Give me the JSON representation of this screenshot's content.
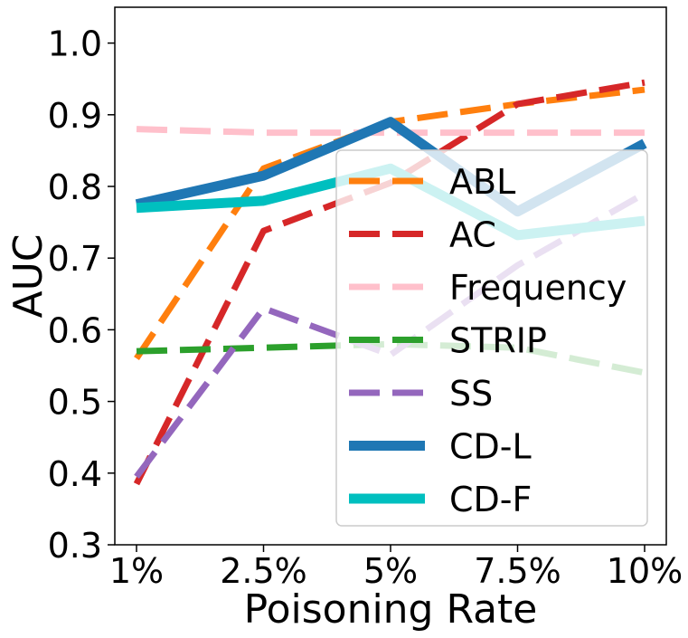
{
  "chart_data": {
    "type": "line",
    "title": "",
    "xlabel": "Poisoning Rate",
    "ylabel": "AUC",
    "categories": [
      "1%",
      "2.5%",
      "5%",
      "7.5%",
      "10%"
    ],
    "ylim": [
      0.3,
      1.05
    ],
    "yticks": [
      "0.3",
      "0.4",
      "0.5",
      "0.6",
      "0.7",
      "0.8",
      "0.9",
      "1.0"
    ],
    "grid": false,
    "legend_position": "lower-right",
    "series": [
      {
        "name": "ABL",
        "values": [
          0.56,
          0.825,
          0.89,
          0.915,
          0.935
        ],
        "color": "#ff7f0e",
        "style": "dashed"
      },
      {
        "name": "AC",
        "values": [
          0.385,
          0.738,
          0.805,
          0.915,
          0.945
        ],
        "color": "#d62728",
        "style": "dashed"
      },
      {
        "name": "Frequency",
        "values": [
          0.88,
          0.875,
          0.875,
          0.875,
          0.875
        ],
        "color": "#ffc0cb",
        "style": "dashed"
      },
      {
        "name": "STRIP",
        "values": [
          0.57,
          0.575,
          0.58,
          0.575,
          0.54
        ],
        "color": "#2ca02c",
        "style": "dashed"
      },
      {
        "name": "SS",
        "values": [
          0.395,
          0.63,
          0.565,
          0.69,
          0.79
        ],
        "color": "#9467bd",
        "style": "dashed"
      },
      {
        "name": "CD-L",
        "values": [
          0.775,
          0.815,
          0.89,
          0.765,
          0.86
        ],
        "color": "#1f77b4",
        "style": "solid"
      },
      {
        "name": "CD-F",
        "values": [
          0.77,
          0.78,
          0.825,
          0.732,
          0.752
        ],
        "color": "#00bfbf",
        "style": "solid"
      }
    ]
  }
}
